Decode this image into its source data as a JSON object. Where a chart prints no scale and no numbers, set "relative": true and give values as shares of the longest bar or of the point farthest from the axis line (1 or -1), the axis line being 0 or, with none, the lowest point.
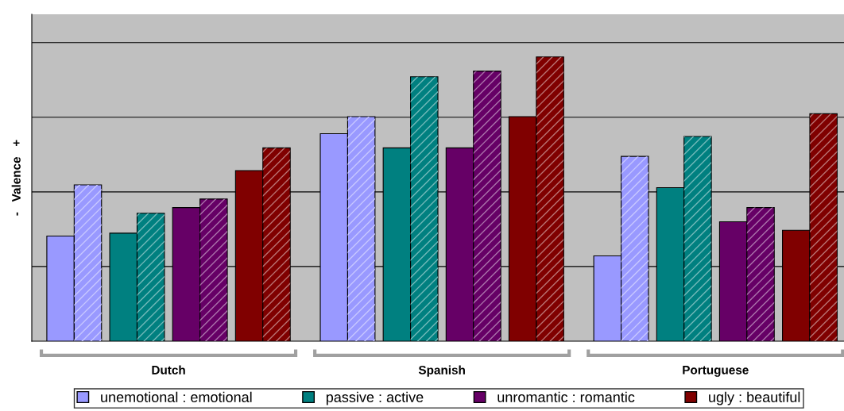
{
  "chart_data": {
    "type": "bar",
    "ylabel": "-   Valence   +",
    "categories": [
      "Dutch",
      "Spanish",
      "Portuguese"
    ],
    "relative": true,
    "grid": "y",
    "legend": "bottom",
    "series": [
      {
        "name": "unemotional : emotional",
        "color": "#9999ff",
        "values": [
          0.37,
          0.73,
          0.3
        ]
      },
      {
        "color": "#9999ff",
        "values": [
          0.55,
          0.79,
          0.65
        ]
      },
      {
        "name": "passive : active",
        "color": "#008080",
        "values": [
          0.38,
          0.68,
          0.54
        ]
      },
      {
        "color": "#008080",
        "values": [
          0.45,
          0.93,
          0.72
        ]
      },
      {
        "name": "unromantic : romantic",
        "color": "#660066",
        "values": [
          0.47,
          0.68,
          0.42
        ]
      },
      {
        "color": "#660066",
        "values": [
          0.5,
          0.95,
          0.47
        ]
      },
      {
        "name": "ugly : beautiful",
        "color": "#800000",
        "values": [
          0.6,
          0.79,
          0.39
        ]
      },
      {
        "color": "#800000",
        "values": [
          0.68,
          1,
          0.8
        ]
      }
    ]
  }
}
